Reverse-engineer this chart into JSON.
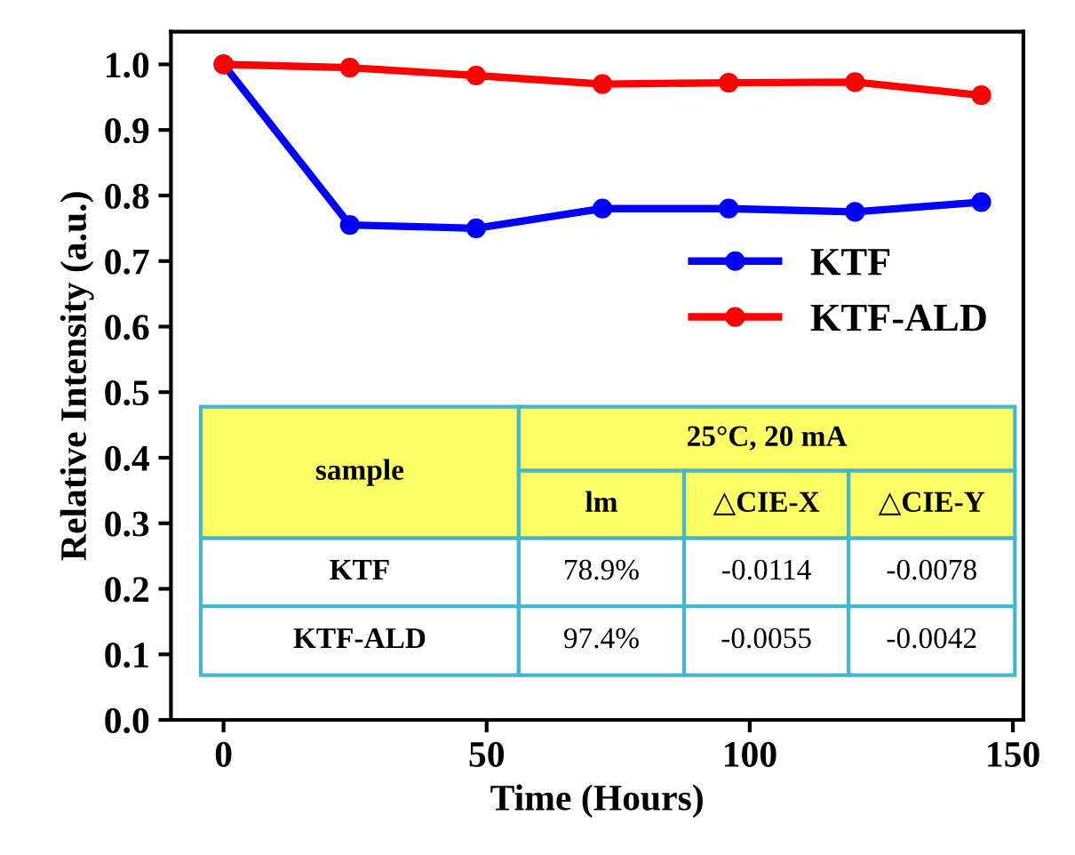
{
  "chart_data": {
    "type": "line",
    "xlabel": "Time (Hours)",
    "ylabel": "Relative Intensity (a.u.)",
    "x": [
      0,
      24,
      48,
      72,
      96,
      120,
      144
    ],
    "series": [
      {
        "name": "KTF",
        "color": "#0000ff",
        "values": [
          1.0,
          0.755,
          0.75,
          0.78,
          0.78,
          0.775,
          0.79
        ]
      },
      {
        "name": "KTF-ALD",
        "color": "#ff0000",
        "values": [
          1.0,
          0.995,
          0.983,
          0.97,
          0.972,
          0.973,
          0.953
        ]
      }
    ],
    "xlim": [
      -10,
      152
    ],
    "xticks": [
      0,
      50,
      100,
      150
    ],
    "ylim": [
      0.0,
      1.05
    ],
    "yticks": [
      {
        "value": 0,
        "label": "0.0"
      },
      0.1,
      0.2,
      0.3,
      0.4,
      0.5,
      0.6,
      0.7,
      0.8,
      0.9,
      {
        "value": 1,
        "label": "1.0"
      }
    ],
    "marker": "circle",
    "line_style": "solid",
    "legend": "center right",
    "grid": false,
    "annotations": [
      "sample",
      "25°C, 20 mA",
      "lm",
      "△CIE-X",
      "△CIE-Y",
      "KTF",
      "78.9%",
      "-0.0114",
      "-0.0078",
      "KTF-ALD",
      "97.4%",
      "-0.0055",
      "-0.0042"
    ]
  }
}
